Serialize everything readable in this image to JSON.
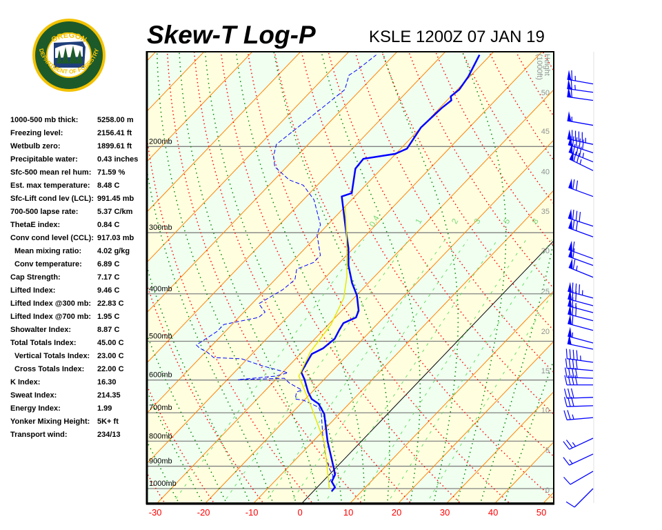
{
  "header": {
    "title": "Skew-T Log-P",
    "station_time": "KSLE 1200Z 07 JAN 19"
  },
  "logo": {
    "text_top": "OREGON",
    "text_bottom": "DEPARTMENT OF FORESTRY"
  },
  "stats": [
    {
      "label": "1000-500 mb thick:",
      "value": "5258.00 m"
    },
    {
      "label": "Freezing level:",
      "value": "2156.41 ft"
    },
    {
      "label": "Wetbulb zero:",
      "value": "1899.61 ft"
    },
    {
      "label": "Precipitable water:",
      "value": "0.43 inches"
    },
    {
      "label": "Sfc-500 mean rel hum:",
      "value": "71.59 %"
    },
    {
      "label": "Est. max temperature:",
      "value": "8.48 C"
    },
    {
      "label": "Sfc-Lift cond lev (LCL):",
      "value": "991.45 mb"
    },
    {
      "label": "700-500 lapse rate:",
      "value": "5.37 C/km"
    },
    {
      "label": "ThetaE index:",
      "value": "0.84 C"
    },
    {
      "label": "Conv cond level (CCL):",
      "value": "917.03 mb"
    },
    {
      "label": "Mean mixing ratio:",
      "value": "4.02 g/kg",
      "indent": true
    },
    {
      "label": "Conv temperature:",
      "value": "6.89 C",
      "indent": true
    },
    {
      "label": "Cap Strength:",
      "value": "7.17 C"
    },
    {
      "label": "Lifted Index:",
      "value": "9.46 C"
    },
    {
      "label": "Lifted Index @300 mb:",
      "value": "22.83 C"
    },
    {
      "label": "Lifted Index @700 mb:",
      "value": "1.95 C"
    },
    {
      "label": "Showalter Index:",
      "value": "8.87 C"
    },
    {
      "label": "Total Totals Index:",
      "value": "45.00 C"
    },
    {
      "label": "Vertical Totals Index:",
      "value": "23.00 C",
      "indent": true
    },
    {
      "label": "Cross Totals Index:",
      "value": "22.00 C",
      "indent": true
    },
    {
      "label": "K Index:",
      "value": "16.30"
    },
    {
      "label": "Sweat Index:",
      "value": "214.35"
    },
    {
      "label": "Energy Index:",
      "value": "1.99"
    },
    {
      "label": "Yonker Mixing Height:",
      "value": "5K+ ft"
    },
    {
      "label": "Transport wind:",
      "value": "234/13"
    }
  ],
  "chart_data": {
    "type": "skew-t",
    "x_axis": {
      "label": "",
      "unit": "C",
      "ticks": [
        -30,
        -20,
        -10,
        0,
        10,
        20,
        30,
        40,
        50
      ],
      "range_at_bottom": [
        -32,
        52
      ]
    },
    "y_axis": {
      "scale": "log-pressure",
      "range_mb": [
        1070,
        128
      ],
      "isobars": [
        {
          "p": 200,
          "label": "200mb"
        },
        {
          "p": 300,
          "label": "300mb"
        },
        {
          "p": 400,
          "label": "400mb"
        },
        {
          "p": 500,
          "label": "500mb"
        },
        {
          "p": 600,
          "label": "600mb"
        },
        {
          "p": 700,
          "label": "700mb"
        },
        {
          "p": 800,
          "label": "800mb"
        },
        {
          "p": 900,
          "label": "900mb"
        },
        {
          "p": 1000,
          "label": "1000mb"
        }
      ]
    },
    "height_axis": {
      "label": "Height (1000ft)",
      "ticks": [
        {
          "kft": "0",
          "p": 1006
        },
        {
          "kft": "5",
          "p": 834
        },
        {
          "kft": "10",
          "p": 691
        },
        {
          "kft": "15",
          "p": 574
        },
        {
          "kft": "20",
          "p": 477
        },
        {
          "kft": "25",
          "p": 395
        },
        {
          "kft": "30",
          "p": 326
        },
        {
          "kft": "35",
          "p": 271
        },
        {
          "kft": "40",
          "p": 225
        },
        {
          "kft": "45",
          "p": 186
        },
        {
          "kft": "50",
          "p": 155
        }
      ]
    },
    "mixing_ratio_labels": [
      "0.4",
      "1",
      "2",
      "3",
      "5",
      "8"
    ],
    "mixing_ratio_values": [
      0.4,
      1,
      2,
      3,
      5,
      8,
      12,
      20
    ],
    "highlight_isotherm_C": 0,
    "colors": {
      "temperature": "#0000ff",
      "dewpoint": "#0000ff",
      "parcel": "#e8e800",
      "isotherm": "#ff8000",
      "dry_adiabat": "#ff0000",
      "moist_adiabat": "#008000",
      "mixing_ratio": "#66dd66",
      "isobar": "#808080",
      "band_a": "#f0fff0",
      "band_b": "#ffffe0",
      "axis_labels": "#ff0000",
      "height_labels": "#909090",
      "wind": "#0000ff"
    },
    "series": [
      {
        "kind": "temperature",
        "style": "solid",
        "points": [
          [
            1013,
            3.8
          ],
          [
            994,
            3.7
          ],
          [
            968,
            1.9
          ],
          [
            937,
            1.2
          ],
          [
            913,
            -0.1
          ],
          [
            802,
            -6.9
          ],
          [
            704,
            -13.1
          ],
          [
            671,
            -16.3
          ],
          [
            656,
            -18.7
          ],
          [
            635,
            -20.8
          ],
          [
            598,
            -24.1
          ],
          [
            578,
            -26.2
          ],
          [
            531,
            -27.6
          ],
          [
            517,
            -26.4
          ],
          [
            494,
            -25.9
          ],
          [
            474,
            -26.7
          ],
          [
            459,
            -27.2
          ],
          [
            447,
            -25.7
          ],
          [
            433,
            -26.5
          ],
          [
            403,
            -29.9
          ],
          [
            380,
            -33.4
          ],
          [
            350,
            -37.6
          ],
          [
            323,
            -41.0
          ],
          [
            298,
            -44.9
          ],
          [
            253,
            -52.7
          ],
          [
            249,
            -51.3
          ],
          [
            222,
            -55.4
          ],
          [
            212,
            -55.7
          ],
          [
            207,
            -50.1
          ],
          [
            202,
            -48.7
          ],
          [
            183,
            -50.0
          ],
          [
            167,
            -49.6
          ],
          [
            161,
            -49.1
          ],
          [
            158,
            -50.0
          ],
          [
            153,
            -49.6
          ],
          [
            144,
            -50.3
          ],
          [
            130,
            -52.3
          ]
        ]
      },
      {
        "kind": "dewpoint",
        "style": "dashed",
        "points": [
          [
            1000,
            2.8
          ],
          [
            974,
            1.5
          ],
          [
            943,
            1.1
          ],
          [
            913,
            -1.0
          ],
          [
            856,
            -4.6
          ],
          [
            776,
            -9.3
          ],
          [
            704,
            -13.7
          ],
          [
            682,
            -15.6
          ],
          [
            660,
            -20.1
          ],
          [
            656,
            -22.1
          ],
          [
            635,
            -23.2
          ],
          [
            629,
            -22.5
          ],
          [
            609,
            -26.4
          ],
          [
            595,
            -28.5
          ],
          [
            599,
            -37.8
          ],
          [
            589,
            -30.7
          ],
          [
            580,
            -28.8
          ],
          [
            561,
            -35.6
          ],
          [
            543,
            -41.2
          ],
          [
            540,
            -47.2
          ],
          [
            526,
            -49.7
          ],
          [
            517,
            -51.9
          ],
          [
            509,
            -53.3
          ],
          [
            477,
            -51.7
          ],
          [
            462,
            -51.7
          ],
          [
            447,
            -45.9
          ],
          [
            436,
            -45.6
          ],
          [
            419,
            -48.6
          ],
          [
            392,
            -46.4
          ],
          [
            374,
            -45.9
          ],
          [
            356,
            -47.6
          ],
          [
            345,
            -45.4
          ],
          [
            334,
            -45.4
          ],
          [
            303,
            -50.2
          ],
          [
            289,
            -51.5
          ],
          [
            257,
            -57.8
          ],
          [
            240,
            -62.9
          ],
          [
            234,
            -66.9
          ],
          [
            220,
            -72.5
          ],
          [
            209,
            -74.9
          ],
          [
            198,
            -76.6
          ],
          [
            174,
            -74.9
          ],
          [
            153,
            -73.3
          ],
          [
            143,
            -75.3
          ],
          [
            139,
            -74.6
          ],
          [
            130,
            -73.7
          ]
        ]
      },
      {
        "kind": "parcel",
        "style": "solid",
        "points": [
          [
            1000,
            2.8
          ],
          [
            802,
            -7.6
          ],
          [
            682,
            -17.1
          ],
          [
            589,
            -25.9
          ],
          [
            526,
            -28.3
          ],
          [
            462,
            -29.5
          ],
          [
            408,
            -32.1
          ],
          [
            368,
            -35.8
          ],
          [
            303,
            -44.1
          ],
          [
            265,
            -50.0
          ]
        ]
      }
    ],
    "winds": [
      {
        "p": 149,
        "dir": 280,
        "kt": 65
      },
      {
        "p": 155,
        "dir": 278,
        "kt": 65
      },
      {
        "p": 161,
        "dir": 278,
        "kt": 60
      },
      {
        "p": 181,
        "dir": 280,
        "kt": 55
      },
      {
        "p": 198,
        "dir": 282,
        "kt": 95
      },
      {
        "p": 206,
        "dir": 288,
        "kt": 90
      },
      {
        "p": 215,
        "dir": 292,
        "kt": 85
      },
      {
        "p": 224,
        "dir": 296,
        "kt": 75
      },
      {
        "p": 253,
        "dir": 290,
        "kt": 70
      },
      {
        "p": 291,
        "dir": 288,
        "kt": 80
      },
      {
        "p": 306,
        "dir": 290,
        "kt": 70
      },
      {
        "p": 339,
        "dir": 290,
        "kt": 60
      },
      {
        "p": 350,
        "dir": 290,
        "kt": 60
      },
      {
        "p": 370,
        "dir": 292,
        "kt": 65
      },
      {
        "p": 408,
        "dir": 285,
        "kt": 85
      },
      {
        "p": 423,
        "dir": 285,
        "kt": 70
      },
      {
        "p": 437,
        "dir": 285,
        "kt": 65
      },
      {
        "p": 454,
        "dir": 285,
        "kt": 70
      },
      {
        "p": 475,
        "dir": 285,
        "kt": 60
      },
      {
        "p": 504,
        "dir": 285,
        "kt": 55
      },
      {
        "p": 519,
        "dir": 282,
        "kt": 50
      },
      {
        "p": 552,
        "dir": 278,
        "kt": 45
      },
      {
        "p": 574,
        "dir": 275,
        "kt": 40
      },
      {
        "p": 595,
        "dir": 272,
        "kt": 40
      },
      {
        "p": 614,
        "dir": 270,
        "kt": 40
      },
      {
        "p": 651,
        "dir": 268,
        "kt": 30
      },
      {
        "p": 677,
        "dir": 268,
        "kt": 30
      },
      {
        "p": 716,
        "dir": 265,
        "kt": 25
      },
      {
        "p": 789,
        "dir": 245,
        "kt": 25
      },
      {
        "p": 850,
        "dir": 245,
        "kt": 15
      },
      {
        "p": 922,
        "dir": 240,
        "kt": 10
      },
      {
        "p": 1000,
        "dir": 225,
        "kt": 10
      }
    ]
  }
}
